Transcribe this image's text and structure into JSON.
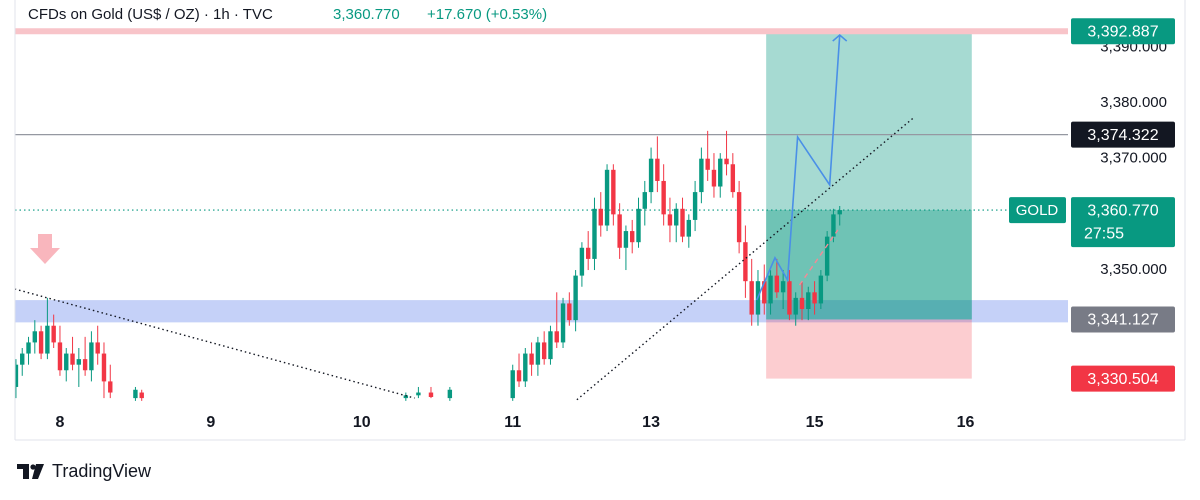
{
  "chart_data": {
    "type": "candlestick",
    "title": "CFDs on Gold (US$ / OZ) · 1h · TVC",
    "last_price": "3,360.770",
    "change": "+17.670 (+0.53%)",
    "up_color": "#089981",
    "down_color": "#f23645",
    "xlim": [
      -7.15,
      160.3
    ],
    "ylim": [
      3326.3,
      3398.5
    ],
    "xticks": [
      {
        "value": 0,
        "label": "8"
      },
      {
        "value": 24,
        "label": "9"
      },
      {
        "value": 48,
        "label": "10"
      },
      {
        "value": 72,
        "label": "11"
      },
      {
        "value": 94,
        "label": "13"
      },
      {
        "value": 120,
        "label": "15"
      },
      {
        "value": 144,
        "label": "16"
      }
    ],
    "yticks": [
      {
        "value": 3350,
        "label": "3,350.000"
      },
      {
        "value": 3370,
        "label": "3,370.000"
      },
      {
        "value": 3380,
        "label": "3,380.000"
      },
      {
        "value": 3390,
        "label": "3,390.000"
      }
    ],
    "candles": {
      "x": [
        -7,
        -6,
        -5,
        -4,
        -3,
        -2,
        -1,
        0,
        1,
        2,
        3,
        4,
        5,
        6,
        7,
        8,
        12,
        13,
        55,
        57,
        59,
        62,
        72,
        73,
        74,
        75,
        76,
        77,
        78,
        79,
        80,
        81,
        82,
        83,
        84,
        85,
        86,
        87,
        88,
        89,
        90,
        91,
        92,
        93,
        94,
        95,
        96,
        97,
        98,
        99,
        100,
        101,
        102,
        103,
        104,
        105,
        106,
        107,
        108,
        109,
        110,
        111,
        112,
        113,
        114,
        115,
        116,
        117,
        118,
        119,
        120,
        121,
        122,
        123,
        124
      ],
      "open": [
        3329,
        3333,
        3335,
        3337,
        3339,
        3335,
        3340,
        3337,
        3332,
        3335,
        3333,
        3334,
        3332,
        3337,
        3335,
        3330,
        3327,
        3328,
        3327,
        3327.5,
        3328,
        3327,
        3327,
        3332,
        3330,
        3335,
        3333,
        3337,
        3334,
        3339,
        3337,
        3344,
        3341,
        3349,
        3354,
        3352,
        3361,
        3358,
        3368,
        3360,
        3354,
        3357,
        3355,
        3361,
        3364,
        3370,
        3366,
        3360,
        3358,
        3361,
        3356,
        3359,
        3364,
        3370,
        3368,
        3365,
        3370,
        3369,
        3364,
        3355,
        3348,
        3342,
        3348,
        3344,
        3349,
        3346,
        3348,
        3342,
        3345,
        3343,
        3346,
        3344,
        3349,
        3356,
        3360
      ],
      "high": [
        3334,
        3336,
        3338,
        3341,
        3340,
        3345,
        3342,
        3340,
        3336,
        3338,
        3336,
        3338,
        3339,
        3340,
        3337,
        3333,
        3329,
        3328.5,
        3328,
        3329,
        3329,
        3329,
        3333,
        3335,
        3336,
        3337,
        3338,
        3339,
        3340,
        3346,
        3345,
        3346,
        3350,
        3355,
        3357,
        3363,
        3364,
        3369,
        3369,
        3362,
        3358,
        3359,
        3363,
        3366,
        3372,
        3374,
        3369,
        3363,
        3362,
        3363,
        3360,
        3366,
        3372,
        3375,
        3371,
        3371,
        3375,
        3371,
        3366,
        3358,
        3352,
        3350,
        3351,
        3350,
        3352,
        3350,
        3350,
        3346,
        3348,
        3347,
        3348,
        3350,
        3357,
        3361,
        3361.5
      ],
      "low": [
        3327,
        3331,
        3333,
        3335,
        3334,
        3334,
        3336,
        3331,
        3330,
        3332,
        3329,
        3331,
        3330,
        3333,
        3327,
        3327,
        3326.5,
        3326.5,
        3326.5,
        3327,
        3327,
        3326.5,
        3326.5,
        3329,
        3329,
        3331,
        3331,
        3333,
        3333,
        3336,
        3336,
        3340,
        3339,
        3347,
        3350,
        3350,
        3356,
        3357,
        3358,
        3352,
        3350,
        3353,
        3354,
        3358,
        3362,
        3364,
        3358,
        3355,
        3355,
        3355,
        3354,
        3357,
        3362,
        3366,
        3363,
        3363,
        3367,
        3363,
        3353,
        3345,
        3340,
        3340,
        3342,
        3342,
        3345,
        3343,
        3341,
        3340,
        3341,
        3341,
        3342,
        3343,
        3348,
        3355,
        3358
      ],
      "close": [
        3333,
        3335,
        3337,
        3339,
        3335,
        3340,
        3337,
        3332,
        3335,
        3333,
        3334,
        3332,
        3337,
        3335,
        3330,
        3328,
        3328.5,
        3327,
        3327.5,
        3328,
        3327.2,
        3328.5,
        3332,
        3330,
        3335,
        3333,
        3337,
        3334,
        3339,
        3337,
        3344,
        3341,
        3349,
        3354,
        3352,
        3361,
        3358,
        3368,
        3360,
        3354,
        3357,
        3355,
        3361,
        3364,
        3370,
        3366,
        3360,
        3358,
        3361,
        3356,
        3359,
        3364,
        3370,
        3368,
        3365,
        3370,
        3369,
        3364,
        3355,
        3348,
        3342,
        3348,
        3344,
        3349,
        3346,
        3348,
        3342,
        3345,
        3343,
        3346,
        3344,
        3349,
        3356,
        3360,
        3360.77
      ]
    },
    "zone": {
      "low": 3340.6,
      "high": 3344.6,
      "color": "#c5d1f8"
    },
    "position": {
      "x_start": 112.3,
      "x_end": 145,
      "entry": 3341.127,
      "target": 3392.887,
      "stop": 3330.504
    },
    "price_lines": [
      {
        "value": 3392.887,
        "label": "3,392.887",
        "label_color": "#089981",
        "line": "solid",
        "line_color": "#f8c4c9"
      },
      {
        "value": 3374.322,
        "label": "3,374.322",
        "label_color": "#131722",
        "line": "solid",
        "line_color": "#9598a1"
      },
      {
        "value": 3360.77,
        "label": "3,360.770",
        "label_color": "#089981",
        "line": "dotted",
        "line_color": "#089981",
        "tag": "GOLD",
        "sublabel": "27:55"
      },
      {
        "value": 3341.127,
        "label": "3,341.127",
        "label_color": "#787b86"
      },
      {
        "value": 3330.504,
        "label": "3,330.504",
        "label_color": "#f23645"
      }
    ],
    "trendlines": [
      {
        "points": [
          [
            -7.2,
            3346.6
          ],
          [
            56.4,
            3327.0
          ]
        ],
        "style": "dotted",
        "color": "#131722"
      },
      {
        "points": [
          [
            82.2,
            3326.7
          ],
          [
            135.9,
            3377.5
          ]
        ],
        "style": "dotted",
        "color": "#131722"
      },
      {
        "points": [
          [
            117.6,
            3347.3
          ],
          [
            123.7,
            3357.2
          ]
        ],
        "style": "dashed",
        "color": "#f28b96"
      },
      {
        "points": [
          [
            110.8,
            3344.6
          ],
          [
            113.7,
            3352.2
          ],
          [
            115.7,
            3348.2
          ],
          [
            117.3,
            3373.9
          ],
          [
            122.4,
            3365.3
          ],
          [
            124,
            3392.2
          ]
        ],
        "style": "arrow",
        "color": "#4a8fe7"
      }
    ],
    "brand": "TradingView"
  }
}
